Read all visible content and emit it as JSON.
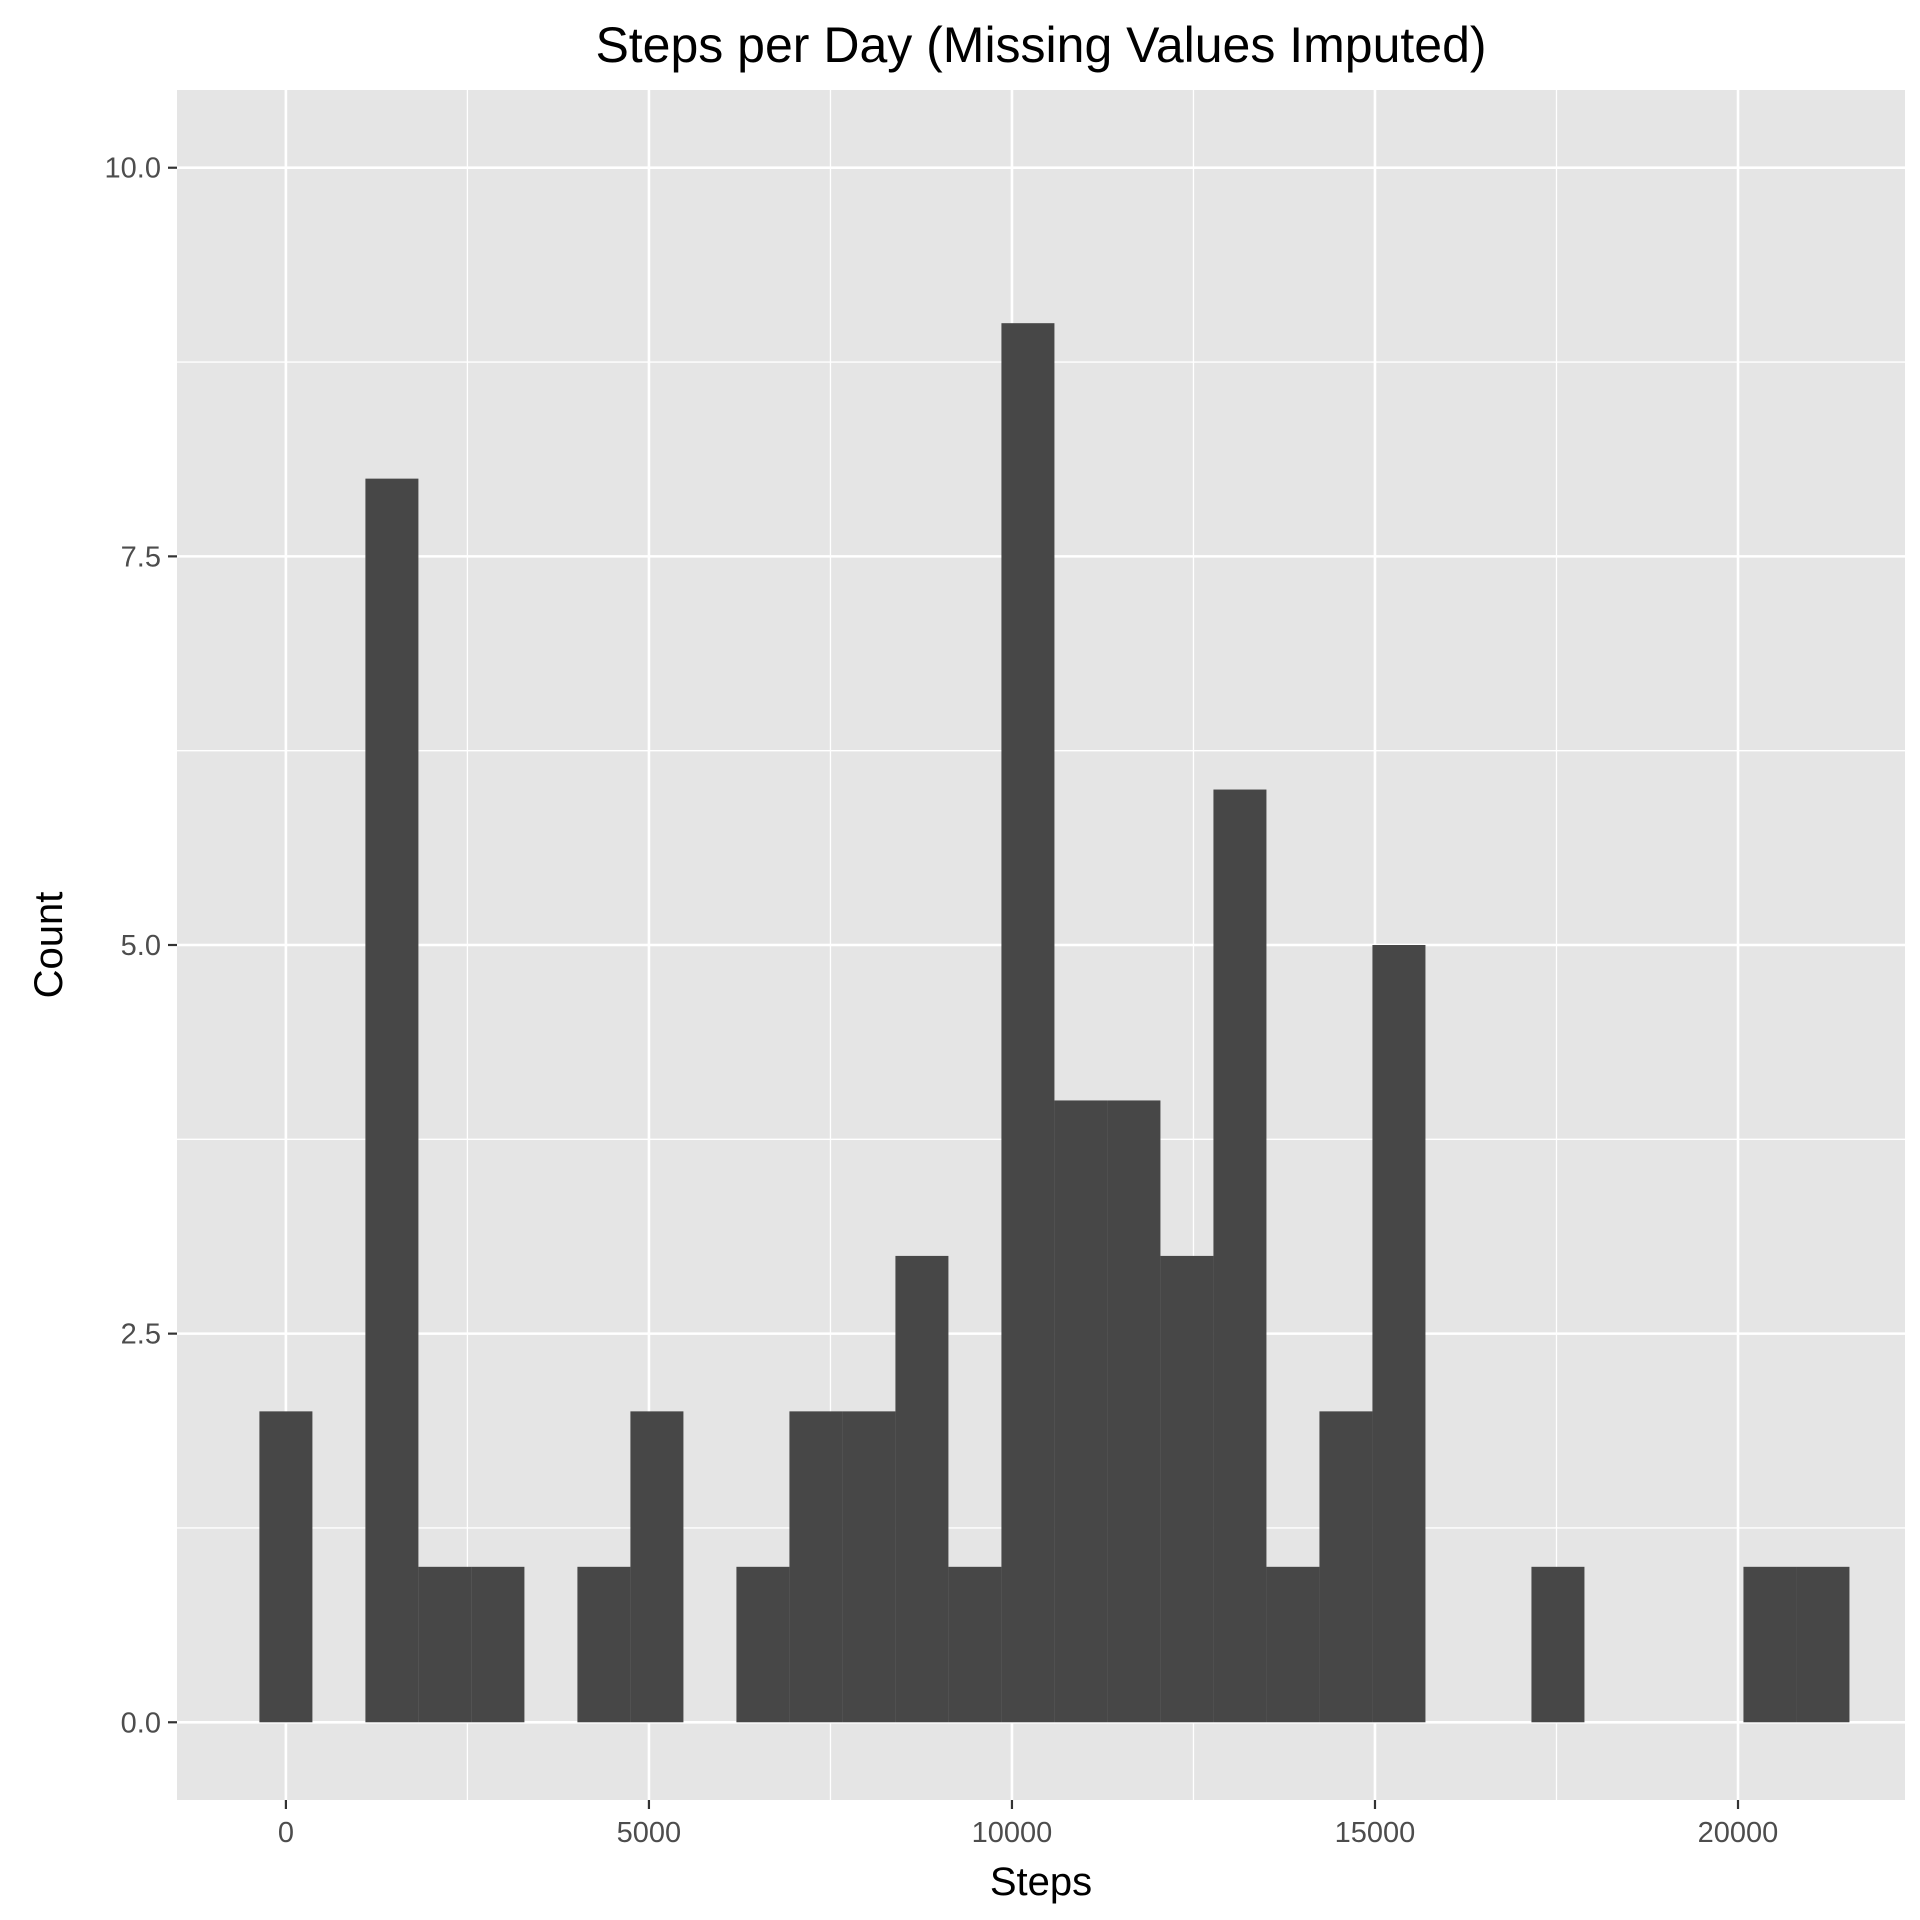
{
  "chart_data": {
    "type": "bar",
    "title": "Steps per Day (Missing Values Imputed)",
    "xlabel": "Steps",
    "ylabel": "Count",
    "xlim": [
      -1500,
      22300
    ],
    "ylim": [
      -0.5,
      10.5
    ],
    "x_ticks": [
      0,
      5000,
      10000,
      15000,
      20000
    ],
    "x_tick_labels": [
      "0",
      "5000",
      "10000",
      "15000",
      "20000"
    ],
    "y_ticks": [
      0,
      2.5,
      5,
      7.5,
      10
    ],
    "y_tick_labels": [
      "0.0",
      "2.5",
      "5.0",
      "7.5",
      "10.0"
    ],
    "grid": true,
    "panel_background": "#e5e5e5",
    "grid_color": "#ffffff",
    "bar_color": "#474747",
    "bins": [
      {
        "x0": -365,
        "x1": 365,
        "count": 2
      },
      {
        "x0": 365,
        "x1": 1095,
        "count": 0
      },
      {
        "x0": 1095,
        "x1": 1825,
        "count": 8
      },
      {
        "x0": 1825,
        "x1": 2555,
        "count": 1
      },
      {
        "x0": 2555,
        "x1": 3285,
        "count": 1
      },
      {
        "x0": 3285,
        "x1": 4015,
        "count": 0
      },
      {
        "x0": 4015,
        "x1": 4745,
        "count": 1
      },
      {
        "x0": 4745,
        "x1": 5475,
        "count": 2
      },
      {
        "x0": 5475,
        "x1": 6205,
        "count": 0
      },
      {
        "x0": 6205,
        "x1": 6935,
        "count": 1
      },
      {
        "x0": 6935,
        "x1": 7665,
        "count": 2
      },
      {
        "x0": 7665,
        "x1": 8395,
        "count": 2
      },
      {
        "x0": 8395,
        "x1": 9125,
        "count": 3
      },
      {
        "x0": 9125,
        "x1": 9855,
        "count": 1
      },
      {
        "x0": 9855,
        "x1": 10585,
        "count": 9
      },
      {
        "x0": 10585,
        "x1": 11315,
        "count": 4
      },
      {
        "x0": 11315,
        "x1": 12045,
        "count": 4
      },
      {
        "x0": 12045,
        "x1": 12775,
        "count": 3
      },
      {
        "x0": 12775,
        "x1": 13505,
        "count": 6
      },
      {
        "x0": 13505,
        "x1": 14235,
        "count": 1
      },
      {
        "x0": 14235,
        "x1": 14965,
        "count": 2
      },
      {
        "x0": 14965,
        "x1": 15695,
        "count": 5
      },
      {
        "x0": 15695,
        "x1": 16425,
        "count": 0
      },
      {
        "x0": 16425,
        "x1": 17155,
        "count": 0
      },
      {
        "x0": 17155,
        "x1": 17885,
        "count": 1
      },
      {
        "x0": 17885,
        "x1": 18615,
        "count": 0
      },
      {
        "x0": 18615,
        "x1": 19345,
        "count": 0
      },
      {
        "x0": 19345,
        "x1": 20075,
        "count": 0
      },
      {
        "x0": 20075,
        "x1": 20805,
        "count": 1
      },
      {
        "x0": 20805,
        "x1": 21535,
        "count": 1
      }
    ]
  }
}
